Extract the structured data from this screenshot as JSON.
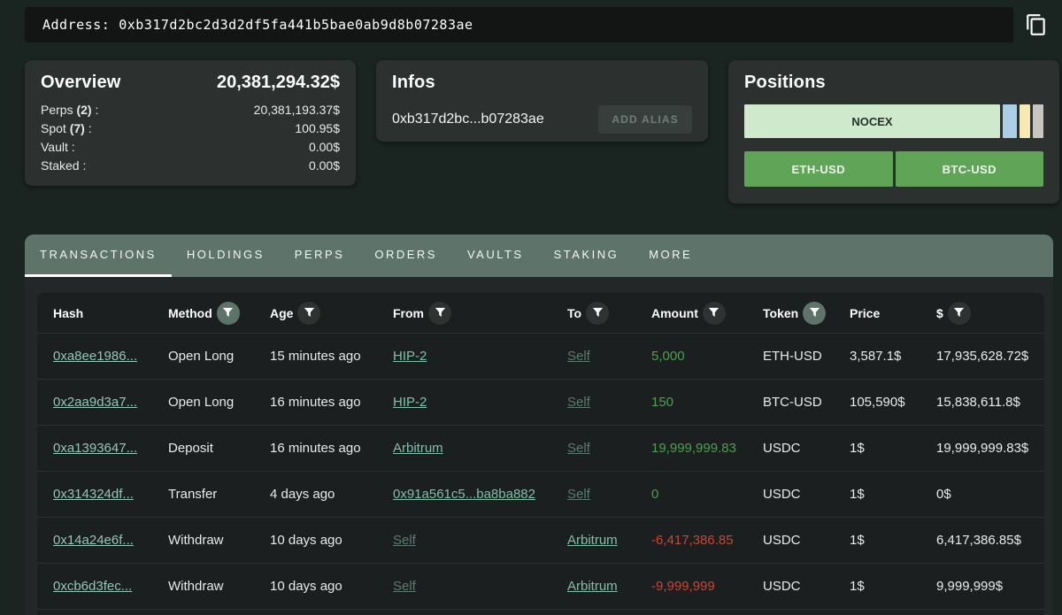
{
  "address_bar": {
    "label": "Address:",
    "value": "0xb317d2bc2d3d2df5fa441b5bae0ab9d8b07283ae"
  },
  "icons": {
    "copy": "copy-icon (two overlapping squares)",
    "filter": "funnel"
  },
  "colors": {
    "page_bg": "#1a2421",
    "card_bg": "#2c302f",
    "tabbar_sage": "#5e736a",
    "table_bg": "#1c1f1f",
    "positive": "#4ba04f",
    "negative": "#cf4434",
    "entity_link": "#7fc0a8",
    "muted_link": "#5c7a6e",
    "pair_button_green": "#60a557"
  },
  "overview": {
    "title": "Overview",
    "total": "20,381,294.32$",
    "rows": [
      {
        "name": "Perps",
        "count": "(2)",
        "suffix": " :",
        "value": "20,381,193.37$"
      },
      {
        "name": "Spot",
        "count": "(7)",
        "suffix": " :",
        "value": "100.95$"
      },
      {
        "name": "Vault",
        "count": "",
        "suffix": " :",
        "value": "0.00$"
      },
      {
        "name": "Staked",
        "count": "",
        "suffix": " :",
        "value": "0.00$"
      }
    ]
  },
  "infos": {
    "title": "Infos",
    "address_short": "0xb317d2bc...b07283ae",
    "add_alias_label": "ADD ALIAS"
  },
  "positions": {
    "title": "Positions",
    "segments": [
      {
        "label": "NOCEX",
        "pct": 85.5,
        "color": "#cfe9cc"
      },
      {
        "label": "",
        "pct": 4.7,
        "color": "#aacfe9"
      },
      {
        "label": "",
        "pct": 3.5,
        "color": "#f7eab0"
      },
      {
        "label": "",
        "pct": 3.5,
        "color": "#c8c5c0"
      }
    ],
    "pairs": [
      "ETH-USD",
      "BTC-USD"
    ]
  },
  "tabs": [
    {
      "label": "TRANSACTIONS",
      "active": true
    },
    {
      "label": "HOLDINGS",
      "active": false
    },
    {
      "label": "PERPS",
      "active": false
    },
    {
      "label": "ORDERS",
      "active": false
    },
    {
      "label": "VAULTS",
      "active": false
    },
    {
      "label": "STAKING",
      "active": false
    },
    {
      "label": "MORE",
      "active": false
    }
  ],
  "table": {
    "columns": [
      {
        "label": "Hash",
        "filter": false,
        "filter_active": false
      },
      {
        "label": "Method",
        "filter": true,
        "filter_active": true
      },
      {
        "label": "Age",
        "filter": true,
        "filter_active": false
      },
      {
        "label": "From",
        "filter": true,
        "filter_active": false
      },
      {
        "label": "To",
        "filter": true,
        "filter_active": false
      },
      {
        "label": "Amount",
        "filter": true,
        "filter_active": false
      },
      {
        "label": "Token",
        "filter": true,
        "filter_active": true
      },
      {
        "label": "Price",
        "filter": false,
        "filter_active": false
      },
      {
        "label": "$",
        "filter": true,
        "filter_active": false
      }
    ],
    "rows": [
      {
        "hash": "0xa8ee1986...",
        "method": "Open Long",
        "age": "15 minutes ago",
        "from": {
          "text": "HIP-2",
          "style": "entity"
        },
        "to": {
          "text": "Self",
          "style": "muted"
        },
        "amount": {
          "text": "5,000",
          "sign": "positive"
        },
        "token": "ETH-USD",
        "price": "3,587.1$",
        "usd": "17,935,628.72$"
      },
      {
        "hash": "0x2aa9d3a7...",
        "method": "Open Long",
        "age": "16 minutes ago",
        "from": {
          "text": "HIP-2",
          "style": "entity"
        },
        "to": {
          "text": "Self",
          "style": "muted"
        },
        "amount": {
          "text": "150",
          "sign": "positive"
        },
        "token": "BTC-USD",
        "price": "105,590$",
        "usd": "15,838,611.8$"
      },
      {
        "hash": "0xa1393647...",
        "method": "Deposit",
        "age": "16 minutes ago",
        "from": {
          "text": "Arbitrum",
          "style": "entity"
        },
        "to": {
          "text": "Self",
          "style": "muted"
        },
        "amount": {
          "text": "19,999,999.83",
          "sign": "positive"
        },
        "token": "USDC",
        "price": "1$",
        "usd": "19,999,999.83$"
      },
      {
        "hash": "0x314324df...",
        "method": "Transfer",
        "age": "4 days ago",
        "from": {
          "text": "0x91a561c5...ba8ba882",
          "style": "entity"
        },
        "to": {
          "text": "Self",
          "style": "muted"
        },
        "amount": {
          "text": "0",
          "sign": "positive"
        },
        "token": "USDC",
        "price": "1$",
        "usd": "0$"
      },
      {
        "hash": "0x14a24e6f...",
        "method": "Withdraw",
        "age": "10 days ago",
        "from": {
          "text": "Self",
          "style": "muted"
        },
        "to": {
          "text": "Arbitrum",
          "style": "entity"
        },
        "amount": {
          "text": "-6,417,386.85",
          "sign": "negative"
        },
        "token": "USDC",
        "price": "1$",
        "usd": "6,417,386.85$"
      },
      {
        "hash": "0xcb6d3fec...",
        "method": "Withdraw",
        "age": "10 days ago",
        "from": {
          "text": "Self",
          "style": "muted"
        },
        "to": {
          "text": "Arbitrum",
          "style": "entity"
        },
        "amount": {
          "text": "-9,999,999",
          "sign": "negative"
        },
        "token": "USDC",
        "price": "1$",
        "usd": "9,999,999$"
      }
    ]
  }
}
